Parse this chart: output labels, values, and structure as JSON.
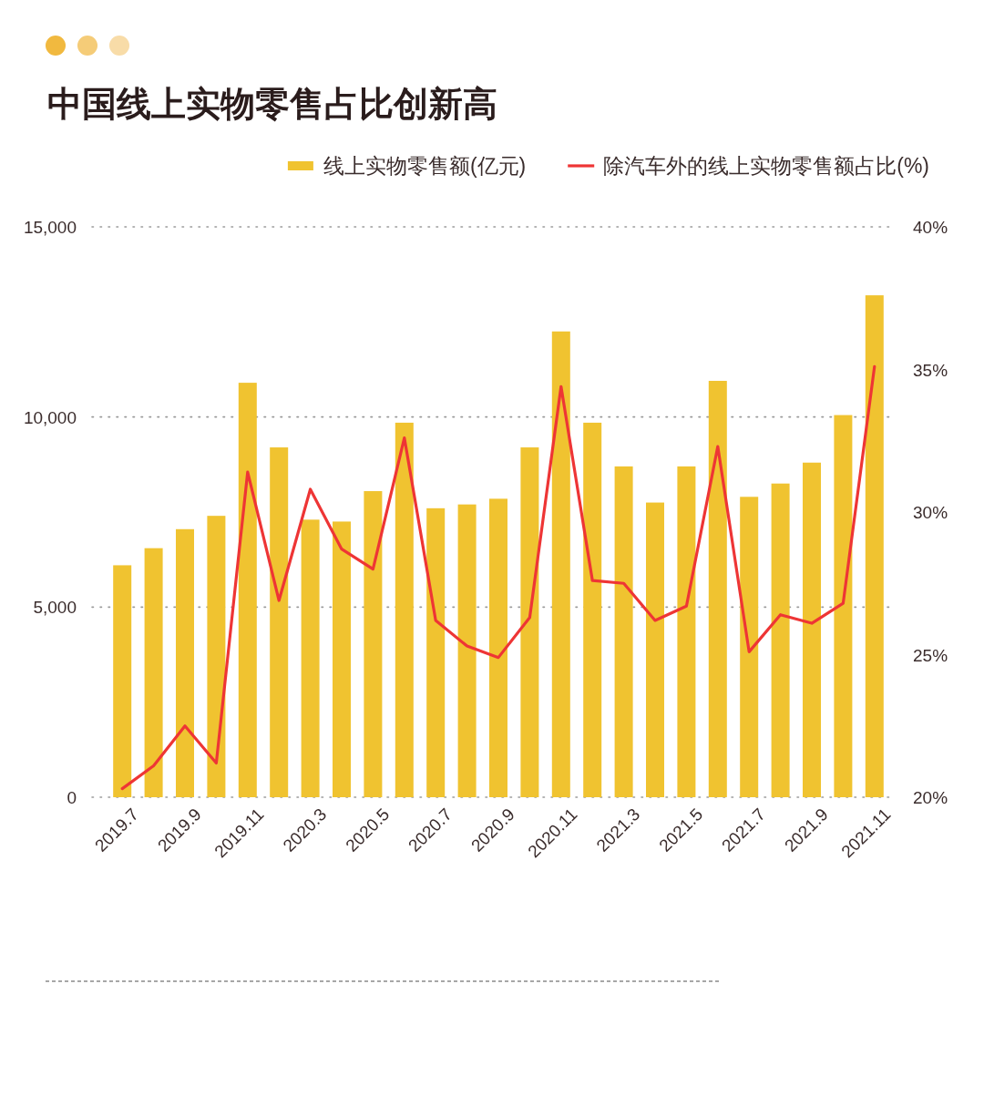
{
  "chart_data": {
    "type": "bar",
    "title": "中国线上实物零售占比创新高",
    "categories": [
      "2019.7",
      null,
      "2019.9",
      null,
      "2019.11",
      null,
      "2020.3",
      null,
      "2020.5",
      null,
      "2020.7",
      null,
      "2020.9",
      null,
      "2020.11",
      null,
      "2021.3",
      null,
      "2021.5",
      null,
      "2021.7",
      null,
      "2021.9",
      null,
      "2021.11"
    ],
    "series": [
      {
        "name": "线上实物零售额(亿元)",
        "color": "#f0c330",
        "values": [
          6100,
          6550,
          7050,
          7400,
          10900,
          9200,
          7300,
          7250,
          8050,
          9850,
          7600,
          7700,
          7850,
          9200,
          12250,
          9850,
          8700,
          7750,
          8700,
          10950,
          7900,
          8250,
          8800,
          10050,
          13200
        ]
      },
      {
        "name": "除汽车外的线上实物零售额占比(%)",
        "type": "line",
        "axis": "y2",
        "color": "#ee3535",
        "values": [
          20.3,
          21.1,
          22.5,
          21.2,
          31.4,
          26.9,
          30.8,
          28.7,
          28.0,
          32.6,
          26.2,
          25.3,
          24.9,
          26.3,
          34.4,
          27.6,
          27.5,
          26.2,
          26.7,
          32.3,
          25.1,
          26.4,
          26.1,
          26.8,
          35.1
        ]
      }
    ],
    "ylim": [
      0,
      15000
    ],
    "yticks": [
      {
        "value": 0,
        "label": "0"
      },
      {
        "value": 5000,
        "label": "5,000"
      },
      {
        "value": 10000,
        "label": "10,000"
      },
      {
        "value": 15000,
        "label": "15,000"
      }
    ],
    "y2lim": [
      20,
      40
    ],
    "y2ticks": [
      {
        "value": 20,
        "label": "20%"
      },
      {
        "value": 25,
        "label": "25%"
      },
      {
        "value": 30,
        "label": "30%"
      },
      {
        "value": 35,
        "label": "35%"
      },
      {
        "value": 40,
        "label": "40%"
      }
    ],
    "grid": "y",
    "legend": "top right"
  }
}
